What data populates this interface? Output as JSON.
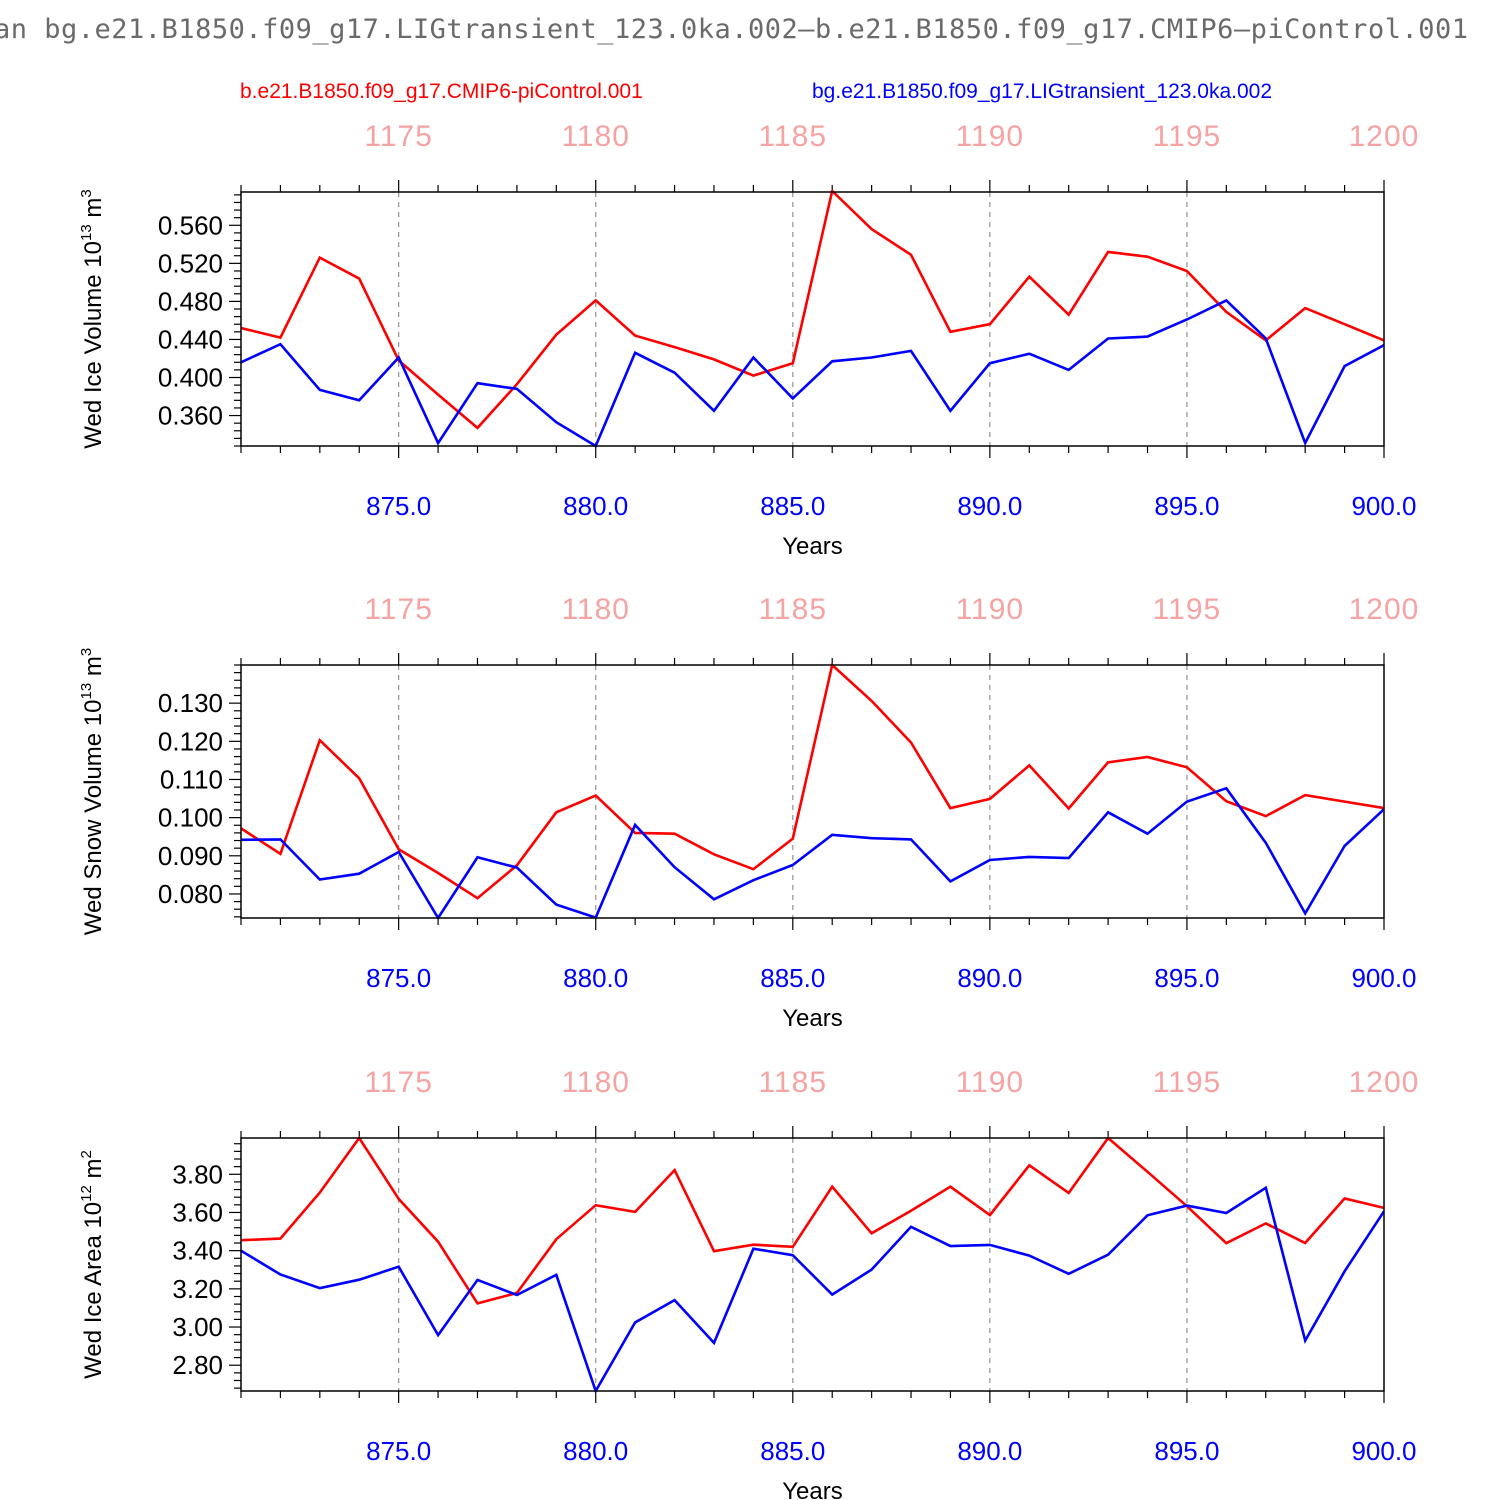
{
  "title": "an bg.e21.B1850.f09_g17.LIGtransient_123.0ka.002–b.e21.B1850.f09_g17.CMIP6–piControl.001",
  "legend": {
    "control": "b.e21.B1850.f09_g17.CMIP6-piControl.001",
    "transient": "bg.e21.B1850.f09_g17.LIGtransient_123.0ka.002"
  },
  "colors": {
    "control": "#ff0000",
    "transient": "#0000ff",
    "top_axis": "#f6a3a3",
    "grid": "#9a9a9a"
  },
  "chart_data": [
    {
      "type": "line",
      "ylabel": "Wed Ice Volume 10",
      "ylabel_exp": "13",
      "ylabel_unit": " m",
      "ylabel_unit_exp": "3",
      "xlabel": "Years",
      "xlim": [
        871,
        900
      ],
      "ylim": [
        0.328,
        0.595
      ],
      "yticks": [
        0.36,
        0.4,
        0.44,
        0.48,
        0.52,
        0.56
      ],
      "ytick_labels": [
        "0.360",
        "0.400",
        "0.440",
        "0.480",
        "0.520",
        "0.560"
      ],
      "xticks": [
        875,
        880,
        885,
        890,
        895,
        900
      ],
      "xtick_labels": [
        "875.0",
        "880.0",
        "885.0",
        "890.0",
        "895.0",
        "900.0"
      ],
      "top_xtick_labels": [
        "1175",
        "1180",
        "1185",
        "1190",
        "1195",
        "1200"
      ],
      "x": [
        871,
        872,
        873,
        874,
        875,
        876,
        877,
        878,
        879,
        880,
        881,
        882,
        883,
        884,
        885,
        886,
        887,
        888,
        889,
        890,
        891,
        892,
        893,
        894,
        895,
        896,
        897,
        898,
        899,
        900
      ],
      "series": [
        {
          "name": "b.e21.B1850.f09_g17.CMIP6-piControl.001",
          "color": "#ff0000",
          "values": [
            0.452,
            0.442,
            0.526,
            0.504,
            0.418,
            0.382,
            0.347,
            0.393,
            0.445,
            0.481,
            0.444,
            0.432,
            0.419,
            0.402,
            0.415,
            0.596,
            0.556,
            0.529,
            0.448,
            0.456,
            0.506,
            0.466,
            0.532,
            0.527,
            0.512,
            0.469,
            0.439,
            0.473,
            0.456,
            0.439
          ]
        },
        {
          "name": "bg.e21.B1850.f09_g17.LIGtransient_123.0ka.002",
          "color": "#0000ff",
          "values": [
            0.416,
            0.435,
            0.387,
            0.376,
            0.421,
            0.331,
            0.394,
            0.388,
            0.353,
            0.328,
            0.426,
            0.405,
            0.365,
            0.421,
            0.378,
            0.417,
            0.421,
            0.428,
            0.365,
            0.415,
            0.425,
            0.408,
            0.441,
            0.443,
            0.461,
            0.481,
            0.441,
            0.331,
            0.412,
            0.434
          ]
        }
      ]
    },
    {
      "type": "line",
      "ylabel": "Wed Snow Volume 10",
      "ylabel_exp": "13",
      "ylabel_unit": " m",
      "ylabel_unit_exp": "3",
      "xlabel": "Years",
      "xlim": [
        871,
        900
      ],
      "ylim": [
        0.0737,
        0.14
      ],
      "yticks": [
        0.08,
        0.09,
        0.1,
        0.11,
        0.12,
        0.13
      ],
      "ytick_labels": [
        "0.080",
        "0.090",
        "0.100",
        "0.110",
        "0.120",
        "0.130"
      ],
      "xticks": [
        875,
        880,
        885,
        890,
        895,
        900
      ],
      "xtick_labels": [
        "875.0",
        "880.0",
        "885.0",
        "890.0",
        "895.0",
        "900.0"
      ],
      "top_xtick_labels": [
        "1175",
        "1180",
        "1185",
        "1190",
        "1195",
        "1200"
      ],
      "x": [
        871,
        872,
        873,
        874,
        875,
        876,
        877,
        878,
        879,
        880,
        881,
        882,
        883,
        884,
        885,
        886,
        887,
        888,
        889,
        890,
        891,
        892,
        893,
        894,
        895,
        896,
        897,
        898,
        899,
        900
      ],
      "series": [
        {
          "name": "b.e21.B1850.f09_g17.CMIP6-piControl.001",
          "color": "#ff0000",
          "values": [
            0.0972,
            0.0905,
            0.1203,
            0.1103,
            0.0917,
            0.0855,
            0.0789,
            0.0875,
            0.1014,
            0.1058,
            0.096,
            0.0958,
            0.0904,
            0.0865,
            0.0945,
            0.14,
            0.1306,
            0.1197,
            0.1025,
            0.1049,
            0.1137,
            0.1024,
            0.1145,
            0.1159,
            0.1132,
            0.1043,
            0.1004,
            0.1059,
            0.1042,
            0.1025
          ]
        },
        {
          "name": "bg.e21.B1850.f09_g17.LIGtransient_123.0ka.002",
          "color": "#0000ff",
          "values": [
            0.0942,
            0.0943,
            0.0838,
            0.0853,
            0.091,
            0.0737,
            0.0896,
            0.0869,
            0.0772,
            0.0738,
            0.0981,
            0.087,
            0.0786,
            0.0836,
            0.0876,
            0.0955,
            0.0946,
            0.0943,
            0.0833,
            0.0889,
            0.0897,
            0.0894,
            0.1014,
            0.0958,
            0.1042,
            0.1077,
            0.0934,
            0.0749,
            0.0926,
            0.1022
          ]
        }
      ]
    },
    {
      "type": "line",
      "ylabel": "Wed Ice Area 10",
      "ylabel_exp": "12",
      "ylabel_unit": " m",
      "ylabel_unit_exp": "2",
      "xlabel": "Years",
      "xlim": [
        871,
        900
      ],
      "ylim": [
        2.665,
        3.99
      ],
      "yticks": [
        2.8,
        3.0,
        3.2,
        3.4,
        3.6,
        3.8
      ],
      "ytick_labels": [
        "2.80",
        "3.00",
        "3.20",
        "3.40",
        "3.60",
        "3.80"
      ],
      "xticks": [
        875,
        880,
        885,
        890,
        895,
        900
      ],
      "xtick_labels": [
        "875.0",
        "880.0",
        "885.0",
        "890.0",
        "895.0",
        "900.0"
      ],
      "top_xtick_labels": [
        "1175",
        "1180",
        "1185",
        "1190",
        "1195",
        "1200"
      ],
      "x": [
        871,
        872,
        873,
        874,
        875,
        876,
        877,
        878,
        879,
        880,
        881,
        882,
        883,
        884,
        885,
        886,
        887,
        888,
        889,
        890,
        891,
        892,
        893,
        894,
        895,
        896,
        897,
        898,
        899,
        900
      ],
      "series": [
        {
          "name": "b.e21.B1850.f09_g17.CMIP6-piControl.001",
          "color": "#ff0000",
          "values": [
            3.455,
            3.463,
            3.704,
            3.99,
            3.671,
            3.447,
            3.124,
            3.178,
            3.46,
            3.638,
            3.603,
            3.822,
            3.397,
            3.431,
            3.42,
            3.735,
            3.491,
            3.609,
            3.735,
            3.586,
            3.847,
            3.702,
            3.99,
            3.813,
            3.633,
            3.439,
            3.543,
            3.44,
            3.673,
            3.624
          ]
        },
        {
          "name": "bg.e21.B1850.f09_g17.LIGtransient_123.0ka.002",
          "color": "#0000ff",
          "values": [
            3.4,
            3.275,
            3.204,
            3.248,
            3.316,
            2.958,
            3.247,
            3.168,
            3.273,
            2.665,
            3.024,
            3.141,
            2.917,
            3.41,
            3.376,
            3.17,
            3.301,
            3.525,
            3.424,
            3.43,
            3.374,
            3.279,
            3.379,
            3.585,
            3.636,
            3.597,
            3.729,
            2.929,
            3.292,
            3.606
          ]
        }
      ]
    }
  ]
}
